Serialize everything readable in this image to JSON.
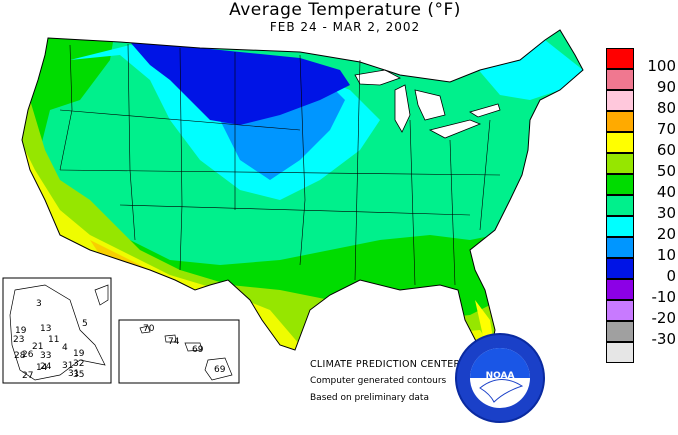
{
  "header": {
    "title": "Average Temperature (°F)",
    "date_range": "FEB 24 - MAR  2, 2002"
  },
  "legend": {
    "items": [
      {
        "label": "100",
        "color": "#ff0000"
      },
      {
        "label": "90",
        "color": "#f07890"
      },
      {
        "label": "80",
        "color": "#ffc8dc"
      },
      {
        "label": "70",
        "color": "#ffaa00"
      },
      {
        "label": "60",
        "color": "#ffff00"
      },
      {
        "label": "50",
        "color": "#96e600"
      },
      {
        "label": "40",
        "color": "#00dc00"
      },
      {
        "label": "30",
        "color": "#00f08c"
      },
      {
        "label": "20",
        "color": "#00ffff"
      },
      {
        "label": "10",
        "color": "#0096ff"
      },
      {
        "label": "0",
        "color": "#0014e6"
      },
      {
        "label": "-10",
        "color": "#8c00e6"
      },
      {
        "label": "-20",
        "color": "#c87aff"
      },
      {
        "label": "-30",
        "color": "#a0a0a0"
      },
      {
        "label": "",
        "color": "#e6e6e6"
      }
    ]
  },
  "credits": {
    "center": "CLIMATE PREDICTION CENTER, NOAA",
    "line2": "Computer generated contours",
    "line3": "Based on preliminary data"
  },
  "alaska_inset": {
    "values": [
      "3",
      "5",
      "19",
      "13",
      "11",
      "4",
      "23",
      "21",
      "26",
      "28",
      "33",
      "14",
      "19",
      "32",
      "31",
      "24",
      "31",
      "35",
      "27"
    ]
  },
  "hawaii_inset": {
    "values": [
      "70",
      "74",
      "69",
      "69"
    ]
  },
  "logo": {
    "text": "NOAA",
    "icon": "noaa-logo-icon"
  },
  "colors": {
    "land_outline": "#000000",
    "water_lakes": "#ffffff"
  }
}
